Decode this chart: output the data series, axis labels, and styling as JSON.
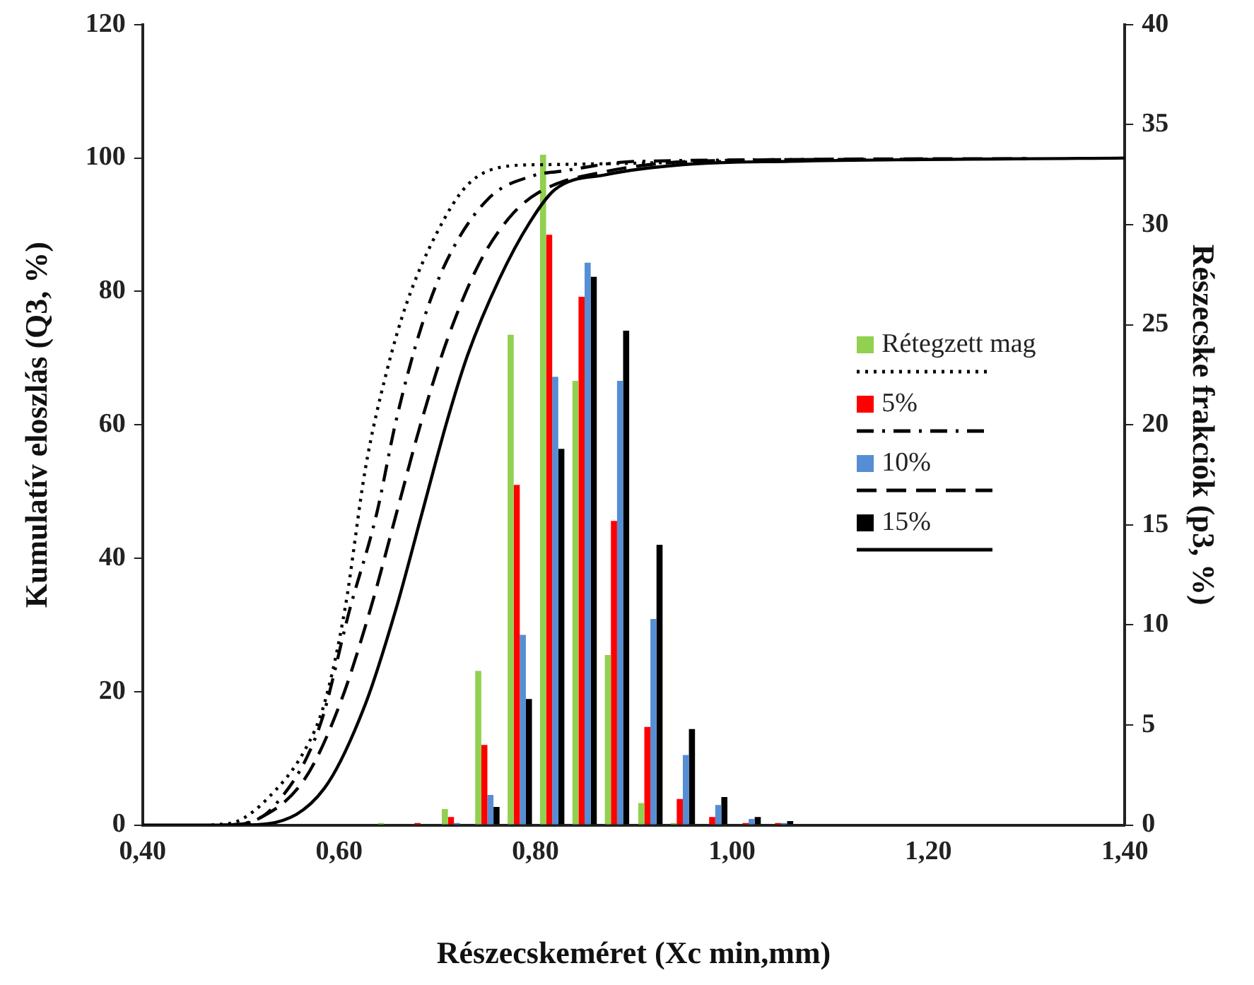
{
  "chart_data": {
    "type": "bar",
    "xlabel": "Részecskeméret (Xc min,mm)",
    "ylabel": "Kumulatív eloszlás (Q3, %)",
    "y2label": "Részecske frakciók (p3, %)",
    "xlim": [
      0.4,
      1.4
    ],
    "xticks": [
      {
        "value": 0.4,
        "label": "0,40"
      },
      {
        "value": 0.6,
        "label": "0,60"
      },
      {
        "value": 0.8,
        "label": "0,80"
      },
      {
        "value": 1.0,
        "label": "1,00"
      },
      {
        "value": 1.2,
        "label": "1,20"
      },
      {
        "value": 1.4,
        "label": "1,40"
      }
    ],
    "ylim": [
      0,
      120
    ],
    "yticks": [
      0,
      20,
      40,
      60,
      80,
      100,
      120
    ],
    "y2lim": [
      0,
      40
    ],
    "y2ticks": [
      0,
      5,
      10,
      15,
      20,
      25,
      30,
      35,
      40
    ],
    "legend": "right",
    "grid": false,
    "series": [
      {
        "name": "Rétegzett mag",
        "axis": "y2",
        "color": "#92d050",
        "x": [
          0.652,
          0.683,
          0.717,
          0.751,
          0.784,
          0.817,
          0.85,
          0.883,
          0.917,
          0.95,
          0.983,
          1.017,
          1.05
        ],
        "values": [
          0.1,
          0,
          0.8,
          7.7,
          24.5,
          33.5,
          22.2,
          8.5,
          1.1,
          0.1,
          0,
          0,
          0
        ]
      },
      {
        "name": "5%",
        "axis": "y2",
        "color": "#ff0000",
        "x": [
          0.652,
          0.683,
          0.717,
          0.751,
          0.784,
          0.817,
          0.85,
          0.883,
          0.917,
          0.95,
          0.983,
          1.017,
          1.05
        ],
        "values": [
          0,
          0.1,
          0.4,
          4.0,
          17.0,
          29.5,
          26.4,
          15.2,
          4.9,
          1.3,
          0.4,
          0.1,
          0.1
        ]
      },
      {
        "name": "10%",
        "axis": "y2",
        "color": "#558ed5",
        "x": [
          0.652,
          0.683,
          0.717,
          0.751,
          0.784,
          0.817,
          0.85,
          0.883,
          0.917,
          0.95,
          0.983,
          1.017,
          1.05
        ],
        "values": [
          0,
          0,
          0.1,
          1.5,
          9.5,
          22.4,
          28.1,
          22.2,
          10.3,
          3.5,
          1.0,
          0.3,
          0.1
        ]
      },
      {
        "name": "15%",
        "axis": "y2",
        "color": "#000000",
        "x": [
          0.652,
          0.683,
          0.717,
          0.751,
          0.784,
          0.817,
          0.85,
          0.883,
          0.917,
          0.95,
          0.983,
          1.017,
          1.05
        ],
        "values": [
          0,
          0,
          0,
          0.9,
          6.3,
          18.8,
          27.4,
          24.7,
          14.0,
          4.8,
          1.4,
          0.4,
          0.2
        ]
      },
      {
        "type": "line",
        "color": "#000000",
        "line_style": "dotted",
        "x": [
          0.47,
          0.497,
          0.528,
          0.565,
          0.585,
          0.606,
          0.627,
          0.648,
          0.669,
          0.7,
          0.731,
          0.773,
          0.809,
          1.0
        ],
        "values": [
          0,
          0.6,
          4.1,
          11.2,
          18.2,
          32.4,
          53.6,
          67.7,
          78.3,
          88.9,
          96.0,
          98.8,
          99.0,
          99.5
        ]
      },
      {
        "type": "line",
        "color": "#000000",
        "line_style": "dashdot",
        "x": [
          0.48,
          0.502,
          0.533,
          0.58,
          0.611,
          0.638,
          0.658,
          0.684,
          0.71,
          0.752,
          0.799,
          0.825,
          0.903,
          1.2
        ],
        "values": [
          0,
          0.2,
          2.7,
          14.7,
          32.4,
          46.5,
          60.6,
          74.8,
          84.7,
          93.9,
          97.4,
          98.0,
          99.5,
          99.8
        ]
      },
      {
        "type": "line",
        "color": "#000000",
        "line_style": "dashed",
        "x": [
          0.49,
          0.513,
          0.565,
          0.601,
          0.632,
          0.658,
          0.684,
          0.71,
          0.742,
          0.773,
          0.804,
          0.872,
          0.981,
          1.3
        ],
        "values": [
          0,
          0.6,
          6.9,
          18.2,
          32.4,
          46.5,
          60.6,
          72.7,
          84.0,
          91.0,
          94.9,
          98.0,
          99.6,
          99.9
        ]
      },
      {
        "type": "line",
        "color": "#000000",
        "line_style": "solid",
        "x": [
          0.4,
          0.5,
          0.528,
          0.585,
          0.627,
          0.658,
          0.684,
          0.71,
          0.731,
          0.763,
          0.794,
          0.82,
          0.872,
          0.95,
          1.059,
          1.4
        ],
        "values": [
          0,
          0,
          0.2,
          5.5,
          18.2,
          32.4,
          46.5,
          60.6,
          70.5,
          81.8,
          90.3,
          95.3,
          97.5,
          99.0,
          99.5,
          100
        ]
      }
    ]
  }
}
